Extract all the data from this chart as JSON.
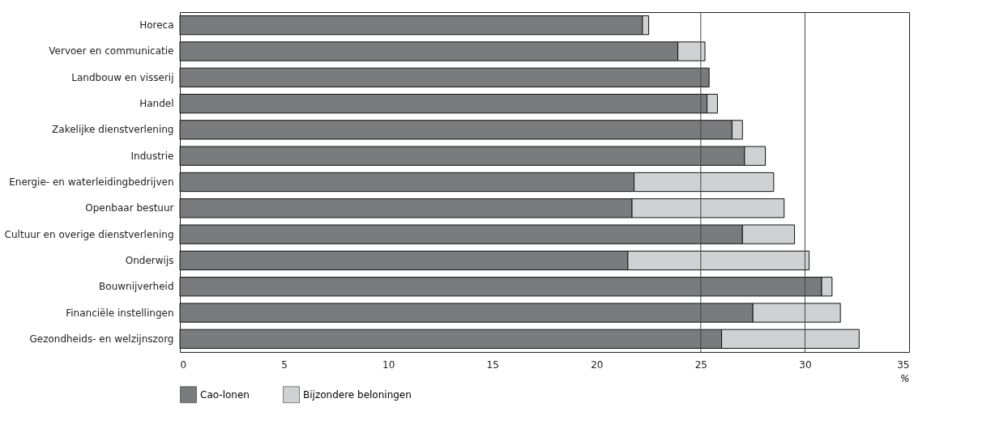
{
  "chart_data": {
    "type": "bar",
    "orientation": "horizontal",
    "stacked": true,
    "categories": [
      "Horeca",
      "Vervoer en communicatie",
      "Landbouw en visserij",
      "Handel",
      "Zakelijke dienstverlening",
      "Industrie",
      "Energie- en waterleidingbedrijven",
      "Openbaar bestuur ",
      "Cultuur en overige dienstverlening",
      "Onderwijs",
      "Bouwnijverheid",
      "Financiële instellingen",
      "Gezondheids- en welzijnszorg"
    ],
    "series": [
      {
        "name": "Cao-lonen",
        "color": "#7a7b7d",
        "values": [
          22.2,
          23.9,
          25.4,
          25.3,
          26.5,
          27.1,
          21.8,
          21.7,
          27.0,
          21.5,
          30.8,
          27.5,
          26.0
        ]
      },
      {
        "name": "Bijzondere beloningen",
        "color": "#d0d1d3",
        "values": [
          0.3,
          1.3,
          null,
          0.5,
          0.5,
          1.0,
          6.7,
          7.3,
          2.5,
          8.7,
          0.5,
          4.2,
          6.6
        ]
      }
    ],
    "xlabel": "%",
    "xlim": [
      0,
      35
    ],
    "xticks": [
      0,
      5,
      10,
      15,
      20,
      25,
      30,
      35
    ],
    "ref_lines": [
      {
        "axis": "x",
        "value": 25
      },
      {
        "axis": "x",
        "value": 30
      }
    ],
    "legend": "bottom left"
  }
}
